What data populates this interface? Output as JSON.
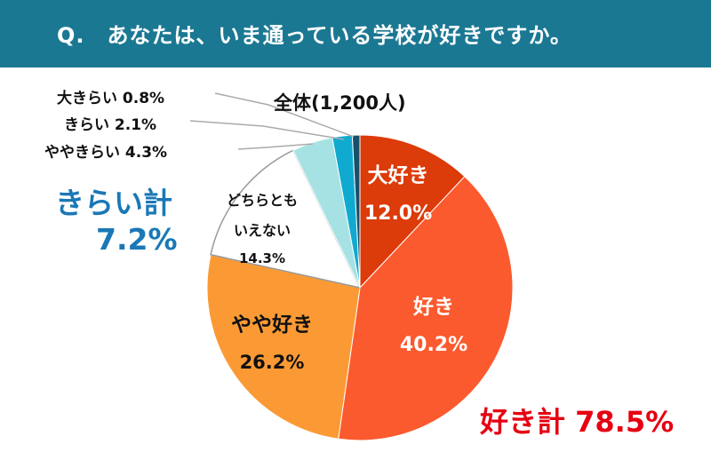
{
  "question": "Q.　あなたは、いま通っている学校が好きですか。",
  "total_label": "全体(1,200人)",
  "summary": {
    "dislike_label": "きらい計",
    "dislike_value": "7.2%",
    "like_text": "好き計 78.5%"
  },
  "labels": {
    "daisuki_name": "大好き",
    "daisuki_value": "12.0%",
    "suki_name": "好き",
    "suki_value": "40.2%",
    "yayasuki_name": "やや好き",
    "yayasuki_value": "26.2%",
    "dochira_line1": "どちらとも",
    "dochira_line2": "いえない",
    "dochira_value": "14.3%",
    "yayakirai": "ややきらい 4.3%",
    "kirai": "きらい 2.1%",
    "daikirai": "大きらい 0.8%"
  },
  "colors": {
    "header": "#1b7893",
    "daisuki": "#dc3b0a",
    "suki": "#fb5a2e",
    "yayasuki": "#fb9a35",
    "dochira": "#ffffff",
    "yayakirai": "#a6e2e4",
    "kirai": "#10aad0",
    "daikirai": "#17506b",
    "like_sum": "#e60012",
    "dislike_sum": "#1a78b6"
  },
  "chart_data": {
    "type": "pie",
    "title": "Q.　あなたは、いま通っている学校が好きですか。",
    "slices": [
      {
        "label": "大好き",
        "value": 12.0
      },
      {
        "label": "好き",
        "value": 40.2
      },
      {
        "label": "やや好き",
        "value": 26.2
      },
      {
        "label": "どちらともいえない",
        "value": 14.3
      },
      {
        "label": "ややきらい",
        "value": 4.3
      },
      {
        "label": "きらい",
        "value": 2.1
      },
      {
        "label": "大きらい",
        "value": 0.8
      }
    ],
    "start": "12 o'clock",
    "direction": "clockwise"
  }
}
